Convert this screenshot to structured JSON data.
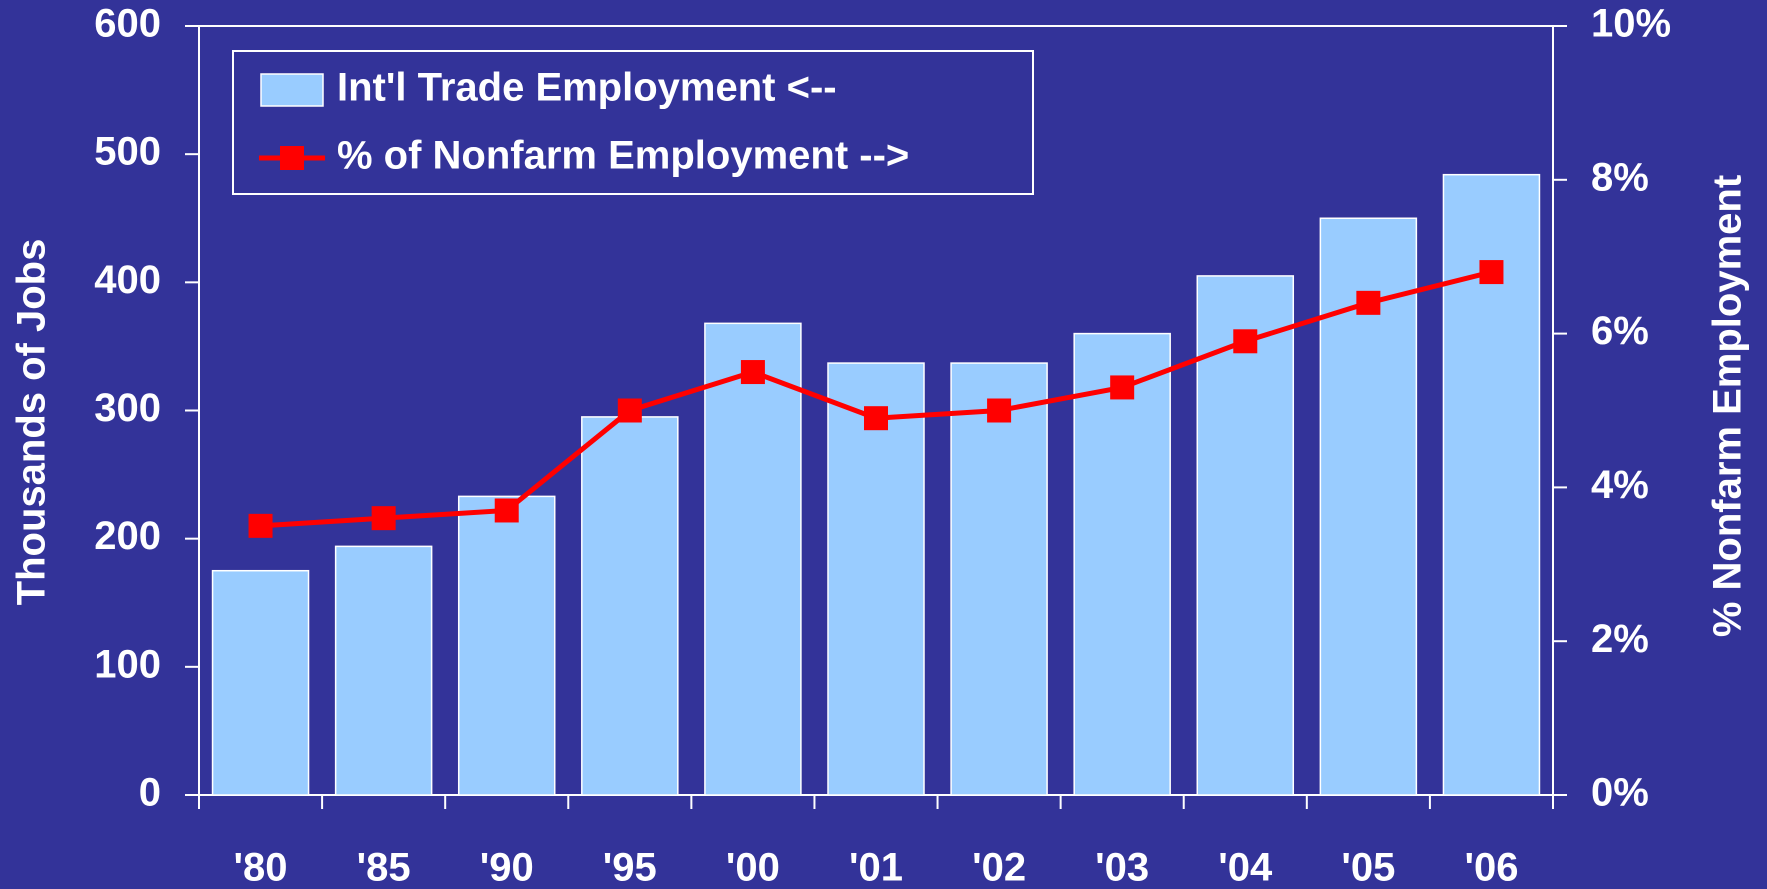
{
  "chart_data": {
    "type": "bar",
    "categories": [
      "'80",
      "'85",
      "'90",
      "'95",
      "'00",
      "'01",
      "'02",
      "'03",
      "'04",
      "'05",
      "'06"
    ],
    "series": [
      {
        "name": "Int'l Trade Employment <--",
        "type": "bar",
        "color": "#99ccff",
        "values": [
          175,
          194,
          233,
          295,
          368,
          337,
          337,
          360,
          405,
          450,
          484
        ]
      },
      {
        "name": "% of Nonfarm Employment -->",
        "type": "line",
        "axis": "y2",
        "color": "#ff0000",
        "values": [
          3.5,
          3.6,
          3.7,
          5.0,
          5.5,
          4.9,
          5.0,
          5.3,
          5.9,
          6.4,
          6.8
        ]
      }
    ],
    "ylabel": "Thousands of Jobs",
    "y2label": "% Nonfarm Employment",
    "ylim": [
      0,
      600
    ],
    "yticks": [
      0,
      100,
      200,
      300,
      400,
      500,
      600
    ],
    "y2lim": [
      0,
      10
    ],
    "y2ticks": [
      {
        "value": 0,
        "label": "0%"
      },
      {
        "value": 2,
        "label": "2%"
      },
      {
        "value": 4,
        "label": "4%"
      },
      {
        "value": 6,
        "label": "6%"
      },
      {
        "value": 8,
        "label": "8%"
      },
      {
        "value": 10,
        "label": "10%"
      }
    ],
    "legend": "upper left"
  }
}
